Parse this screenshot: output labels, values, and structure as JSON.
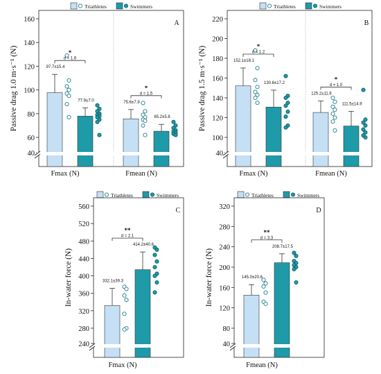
{
  "colors": {
    "triathletes": "#c5dff5",
    "swimmers": "#1e9aa9",
    "axis": "#222222",
    "marker_tri": "#ffffff",
    "marker_swim": "#1e9aa9"
  },
  "chart_data": [
    {
      "panel": "A",
      "type": "bar",
      "ylabel": "Passive drag 1.0 m·s⁻¹ (N)",
      "ylim": [
        40,
        160
      ],
      "yticks": [
        "40",
        "60",
        "80",
        "100",
        "120",
        "140",
        "160"
      ],
      "axis_break": true,
      "legend": {
        "position": "top",
        "entries": [
          "Triathletes",
          "Swimmers"
        ]
      },
      "groups": [
        {
          "xlabel": "Fmax (N)",
          "effect_size": "d = 1.6",
          "significance": "*",
          "bars": [
            {
              "series": "Triathletes",
              "value": 97.7,
              "sd": 15.4,
              "label": "97.7±15.4",
              "points": [
                129,
                108,
                103,
                100,
                97,
                95,
                88,
                77
              ]
            },
            {
              "series": "Swimmers",
              "value": 77.9,
              "sd": 7.0,
              "label": "77.9±7.0",
              "points": [
                87,
                84,
                82,
                80,
                79,
                78,
                77,
                75,
                73,
                62
              ]
            }
          ]
        },
        {
          "xlabel": "Fmean (N)",
          "effect_size": "d = 1.5",
          "significance": "*",
          "bars": [
            {
              "series": "Triathletes",
              "value": 75.6,
              "sd": 7.9,
              "label": "75.6±7.9",
              "points": [
                89,
                82,
                79,
                77,
                75,
                74,
                70,
                62
              ]
            },
            {
              "series": "Swimmers",
              "value": 65.2,
              "sd": 5.8,
              "label": "65.2±5.8",
              "points": [
                73,
                70,
                68,
                66,
                65,
                64,
                63,
                62
              ]
            }
          ]
        }
      ]
    },
    {
      "panel": "B",
      "type": "bar",
      "ylabel": "Passive drag 1.5 m·s⁻¹ (N)",
      "ylim": [
        40,
        220
      ],
      "yticks": [
        "40",
        "100",
        "120",
        "140",
        "160",
        "180",
        "200",
        "220"
      ],
      "axis_break": true,
      "legend": {
        "position": "top",
        "entries": [
          "Triathletes",
          "Swimmers"
        ]
      },
      "groups": [
        {
          "xlabel": "Fmax (N)",
          "effect_size": "d = 1.2",
          "significance": "*",
          "bars": [
            {
              "series": "Triathletes",
              "value": 152.1,
              "sd": 18.1,
              "label": "152.1±18.1",
              "points": [
                188,
                170,
                158,
                151,
                146,
                143,
                140,
                135
              ]
            },
            {
              "series": "Swimmers",
              "value": 130.6,
              "sd": 17.2,
              "label": "130.6±17.2",
              "points": [
                162,
                142,
                140,
                135,
                132,
                126,
                121,
                112,
                110
              ]
            }
          ]
        },
        {
          "xlabel": "Fmean (N)",
          "effect_size": "d = 1.0",
          "significance": "*",
          "bars": [
            {
              "series": "Triathletes",
              "value": 125.2,
              "sd": 11.6,
              "label": "125.2±11.6",
              "points": [
                140,
                136,
                131,
                128,
                124,
                120,
                116,
                107
              ]
            },
            {
              "series": "Swimmers",
              "value": 111.5,
              "sd": 14.9,
              "label": "111.5±14.9",
              "points": [
                148,
                118,
                115,
                112,
                108,
                105,
                102,
                100
              ]
            }
          ]
        }
      ]
    },
    {
      "panel": "C",
      "type": "bar",
      "ylabel": "In-water force (N)",
      "ylim": [
        240,
        560
      ],
      "yticks": [
        "240",
        "280",
        "320",
        "360",
        "400",
        "440",
        "480",
        "520",
        "560"
      ],
      "axis_break": true,
      "legend": {
        "position": "top",
        "entries": [
          "Triathletes",
          "Swimmers"
        ]
      },
      "groups": [
        {
          "xlabel": "Fmax (N)",
          "effect_size": "d = 2.1",
          "significance": "**",
          "bars": [
            {
              "series": "Triathletes",
              "value": 332.1,
              "sd": 39.3,
              "label": "332.1±39.3",
              "points": [
                375,
                370,
                355,
                345,
                313,
                280,
                277
              ]
            },
            {
              "series": "Swimmers",
              "value": 414.2,
              "sd": 40.6,
              "label": "414.2±40.6",
              "points": [
                465,
                460,
                448,
                433,
                420,
                405,
                400,
                385,
                362
              ]
            }
          ]
        }
      ]
    },
    {
      "panel": "D",
      "type": "bar",
      "ylabel": "In-water force (N)",
      "ylim": [
        40,
        320
      ],
      "yticks": [
        "40",
        "80",
        "120",
        "160",
        "200",
        "240",
        "280",
        "320"
      ],
      "axis_break": true,
      "legend": {
        "position": "top",
        "entries": [
          "Triathletes",
          "Swimmers"
        ]
      },
      "groups": [
        {
          "xlabel": "Fmean (N)",
          "effect_size": "d = 3.3",
          "significance": "**",
          "bars": [
            {
              "series": "Triathletes",
              "value": 145.0,
              "sd": 20.6,
              "label": "145.0±20.6",
              "points": [
                175,
                168,
                162,
                150,
                132,
                128
              ]
            },
            {
              "series": "Swimmers",
              "value": 208.7,
              "sd": 17.5,
              "label": "208.7±17.5",
              "points": [
                228,
                222,
                212,
                208,
                204,
                200,
                196,
                170
              ]
            }
          ]
        }
      ]
    }
  ]
}
